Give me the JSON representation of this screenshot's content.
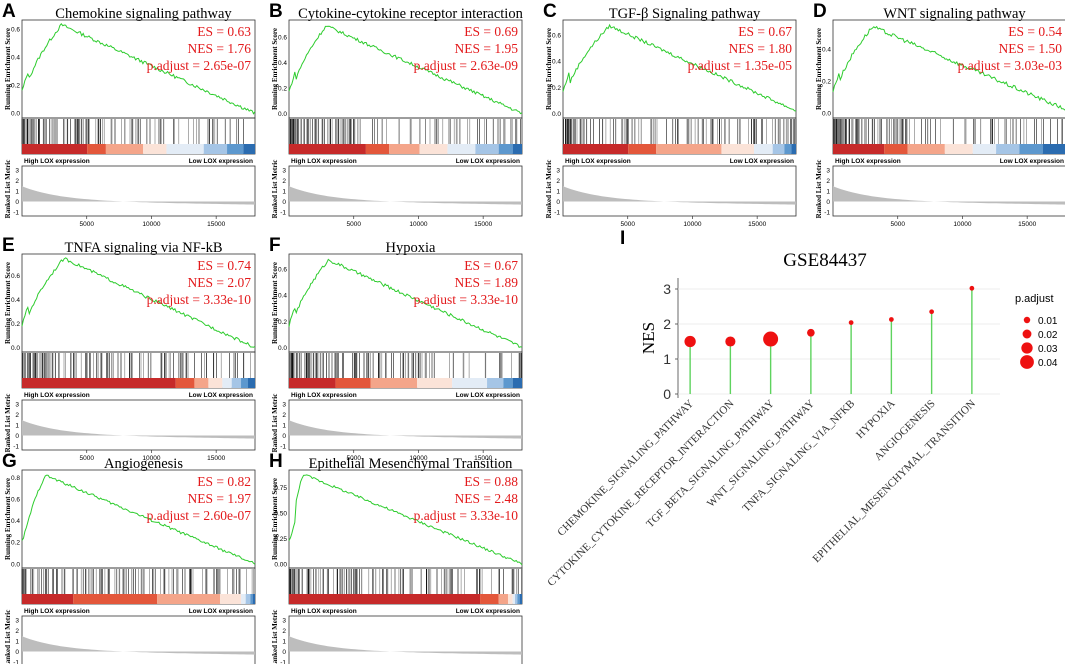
{
  "colors": {
    "curve": "#2ecc2e",
    "stat": "#e31a1c",
    "gray": "#bdbdbd",
    "lollipop_stem": "#5ed35e",
    "lollipop_dot": "#ee1111",
    "heat": [
      "#c62a2a",
      "#e3573b",
      "#f4a58a",
      "#fbe3d8",
      "#e3ecf6",
      "#a5c5e6",
      "#5d98ce",
      "#2b6cb0"
    ]
  },
  "gsea_panels": [
    {
      "letter": "A",
      "title": "Chemokine signaling pathway",
      "es": "ES = 0.63",
      "nes": "NES = 1.76",
      "padj": "p.adjust = 2.65e-07",
      "y_ticks": [
        "0.6",
        "0.4",
        "0.2",
        "0.0"
      ],
      "y_max": 0.65,
      "peak_fraction": 0.17,
      "peak": 0.63,
      "end_value": 0.0,
      "heat_stops": [
        0.28,
        0.36,
        0.52,
        0.62,
        0.78,
        0.88,
        0.95,
        1.0
      ]
    },
    {
      "letter": "B",
      "title": "Cytokine-cytokine receptor interaction",
      "es": "ES = 0.69",
      "nes": "NES = 1.95",
      "padj": "p.adjust = 2.63e-09",
      "y_ticks": [
        "0.6",
        "0.4",
        "0.2",
        "0.0"
      ],
      "y_max": 0.72,
      "peak_fraction": 0.16,
      "peak": 0.69,
      "end_value": 0.0,
      "heat_stops": [
        0.33,
        0.43,
        0.56,
        0.68,
        0.8,
        0.9,
        0.96,
        1.0
      ]
    },
    {
      "letter": "C",
      "title": "TGF-β Signaling pathway",
      "es": "ES = 0.67",
      "nes": "NES = 1.80",
      "padj": "p.adjust = 1.35e-05",
      "y_ticks": [
        "0.6",
        "0.4",
        "0.2",
        "0.0"
      ],
      "y_max": 0.7,
      "peak_fraction": 0.2,
      "peak": 0.67,
      "end_value": 0.02,
      "heat_stops": [
        0.28,
        0.4,
        0.68,
        0.82,
        0.9,
        0.95,
        0.98,
        1.0
      ]
    },
    {
      "letter": "D",
      "title": "WNT signaling pathway",
      "es": "ES = 0.54",
      "nes": "NES = 1.50",
      "padj": "p.adjust = 3.03e-03",
      "y_ticks": [
        "0.4",
        "0.2",
        "0.0"
      ],
      "y_max": 0.57,
      "peak_fraction": 0.17,
      "peak": 0.54,
      "end_value": 0.02,
      "heat_stops": [
        0.22,
        0.32,
        0.48,
        0.6,
        0.7,
        0.8,
        0.9,
        1.0
      ]
    },
    {
      "letter": "E",
      "title": "TNFA signaling via NF-kB",
      "es": "ES = 0.74",
      "nes": "NES = 2.07",
      "padj": "p.adjust = 3.33e-10",
      "y_ticks": [
        "0.6",
        "0.4",
        "0.2",
        "0.0"
      ],
      "y_max": 0.76,
      "peak_fraction": 0.18,
      "peak": 0.74,
      "end_value": 0.0,
      "heat_stops": [
        0.66,
        0.74,
        0.8,
        0.86,
        0.9,
        0.94,
        0.97,
        1.0
      ]
    },
    {
      "letter": "F",
      "title": "Hypoxia",
      "es": "ES = 0.67",
      "nes": "NES = 1.89",
      "padj": "p.adjust = 3.33e-10",
      "y_ticks": [
        "0.6",
        "0.4",
        "0.2",
        "0.0"
      ],
      "y_max": 0.7,
      "peak_fraction": 0.17,
      "peak": 0.67,
      "end_value": 0.0,
      "heat_stops": [
        0.2,
        0.35,
        0.55,
        0.7,
        0.85,
        0.92,
        0.96,
        1.0
      ]
    },
    {
      "letter": "G",
      "title": "Angiogenesis",
      "es": "ES = 0.82",
      "nes": "NES = 1.97",
      "padj": "p.adjust = 2.60e-07",
      "y_ticks": [
        "0.8",
        "0.6",
        "0.4",
        "0.2",
        "0.0"
      ],
      "y_max": 0.85,
      "peak_fraction": 0.1,
      "peak": 0.82,
      "end_value": 0.0,
      "heat_stops": [
        0.22,
        0.58,
        0.85,
        0.94,
        0.96,
        0.98,
        0.99,
        1.0
      ]
    },
    {
      "letter": "H",
      "title": "Epithelial Mesenchymal Transition",
      "es": "ES = 0.88",
      "nes": "NES = 2.48",
      "padj": "p.adjust = 3.33e-10",
      "y_ticks": [
        "0.75",
        "0.50",
        "0.25",
        "0.00"
      ],
      "y_max": 0.9,
      "peak_fraction": 0.06,
      "peak": 0.88,
      "end_value": 0.0,
      "heat_stops": [
        0.82,
        0.9,
        0.94,
        0.96,
        0.97,
        0.98,
        0.99,
        1.0
      ]
    }
  ],
  "gsea_common": {
    "ylabel_top": "Running Enrichment Score",
    "ylabel_bottom": "Ranked List Metric",
    "high_label": "High LOX expression",
    "low_label": "Low LOX expression",
    "metric_ticks": [
      "3",
      "2",
      "1",
      "0",
      "-1"
    ],
    "x_ticks": [
      "5000",
      "10000",
      "15000"
    ],
    "x_tick_values": [
      5000,
      10000,
      15000
    ],
    "x_max": 18000
  },
  "chart_data": [
    {
      "type": "line",
      "description": "GSEA running enrichment score panels A–H",
      "xlabel": "",
      "ylabel": "Running Enrichment Score",
      "series": [
        {
          "name": "Chemokine signaling pathway",
          "ES": 0.63,
          "NES": 1.76,
          "p.adjust": 2.65e-07
        },
        {
          "name": "Cytokine-cytokine receptor interaction",
          "ES": 0.69,
          "NES": 1.95,
          "p.adjust": 2.63e-09
        },
        {
          "name": "TGF-β Signaling pathway",
          "ES": 0.67,
          "NES": 1.8,
          "p.adjust": 1.35e-05
        },
        {
          "name": "WNT signaling pathway",
          "ES": 0.54,
          "NES": 1.5,
          "p.adjust": 0.00303
        },
        {
          "name": "TNFA signaling via NF-kB",
          "ES": 0.74,
          "NES": 2.07,
          "p.adjust": 3.33e-10
        },
        {
          "name": "Hypoxia",
          "ES": 0.67,
          "NES": 1.89,
          "p.adjust": 3.33e-10
        },
        {
          "name": "Angiogenesis",
          "ES": 0.82,
          "NES": 1.97,
          "p.adjust": 2.6e-07
        },
        {
          "name": "Epithelial Mesenchymal Transition",
          "ES": 0.88,
          "NES": 2.48,
          "p.adjust": 3.33e-10
        }
      ]
    },
    {
      "type": "scatter",
      "letter": "I",
      "title": "GSE84437",
      "ylabel": "NES",
      "ylim": [
        0,
        3.2
      ],
      "y_ticks": [
        0,
        1,
        2,
        3
      ],
      "categories": [
        "CHEMOKINE_SIGNALING_PATHWAY",
        "CYTOKINE_CYTOKINE_RECEPTOR_INTERACTION",
        "TGF_BETA_SIGNALING_PATHWAY",
        "WNT_SIGNALING_PATHWAY",
        "TNFA_SIGNALING_VIA_NFKB",
        "HYPOXIA",
        "ANGIOGENESIS",
        "EPITHELIAL_MESENCHYMAL_TRANSITION"
      ],
      "values": [
        1.5,
        1.5,
        1.57,
        1.75,
        2.04,
        2.13,
        2.35,
        3.02
      ],
      "p_adjust": [
        0.03,
        0.025,
        0.045,
        0.015,
        0.003,
        0.003,
        0.003,
        0.003
      ],
      "legend": {
        "title": "p.adjust",
        "entries": [
          "0.01",
          "0.02",
          "0.03",
          "0.04"
        ],
        "values": [
          0.01,
          0.02,
          0.03,
          0.04
        ],
        "placement": "right"
      }
    }
  ]
}
